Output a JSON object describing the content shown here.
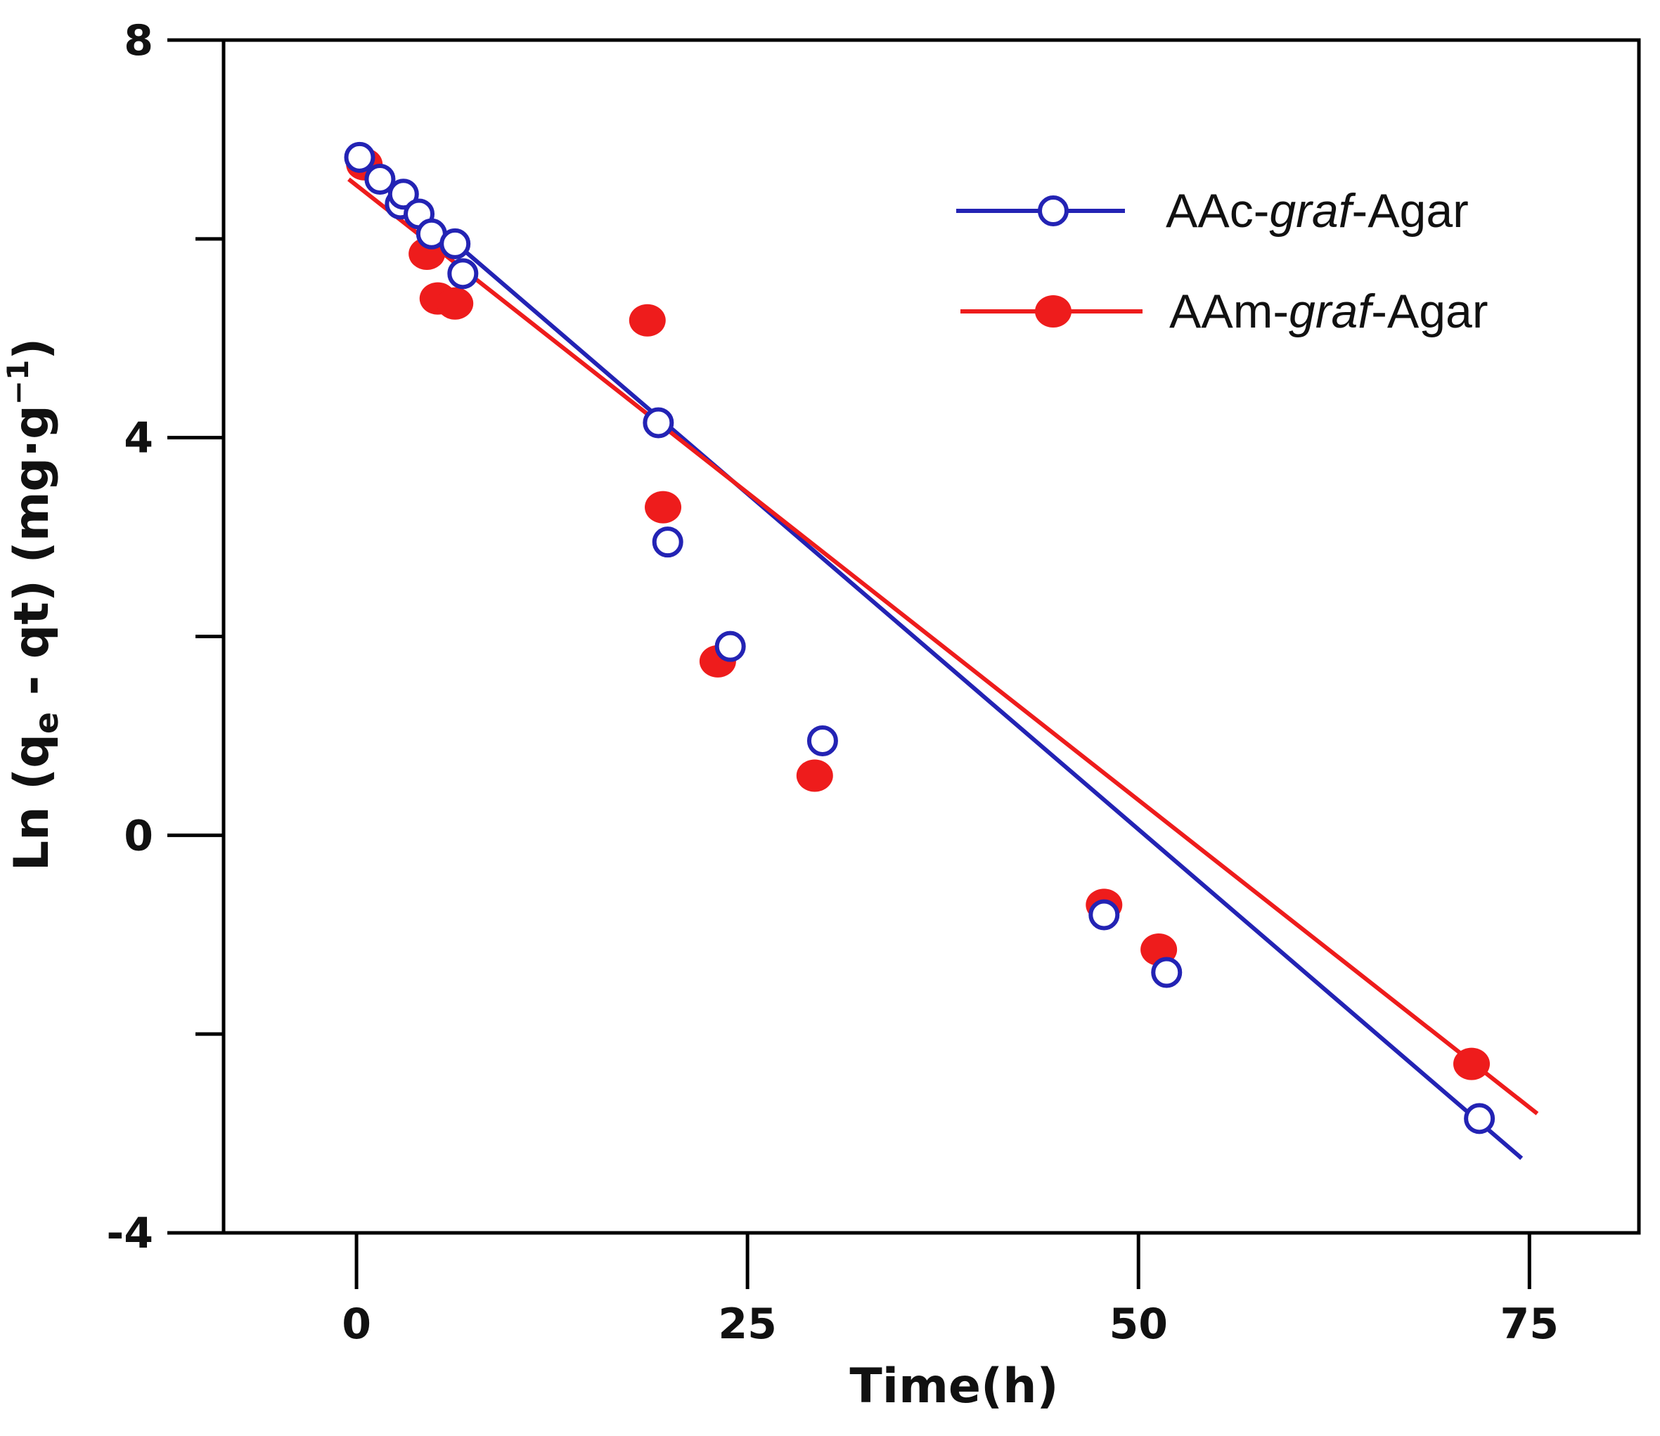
{
  "chart_data": {
    "type": "scatter",
    "xlabel": "Time(h)",
    "ylabel_parts": {
      "prefix": "Ln (q",
      "sub_e": "e",
      "middle": " - qt) (mg·g",
      "sup": "−1",
      "suffix": ")"
    },
    "xlim": [
      -8.5,
      82
    ],
    "ylim": [
      -4,
      8
    ],
    "x_ticks": [
      0,
      25,
      50,
      75
    ],
    "x_tick_labels": [
      "0",
      "25",
      "50",
      "75"
    ],
    "y_ticks": [
      -4,
      0,
      4,
      8
    ],
    "y_tick_labels": [
      "-4",
      "0",
      "4",
      "8"
    ],
    "y_minor_ticks": [
      -2,
      2,
      6
    ],
    "series": [
      {
        "name": "AAc-graf-Agar",
        "label_parts": [
          "AAc-",
          "graf",
          "-Agar"
        ],
        "marker": "open-circle",
        "color": "#2323b4",
        "points": [
          [
            0.2,
            6.82
          ],
          [
            1.5,
            6.6
          ],
          [
            2.8,
            6.35
          ],
          [
            3.0,
            6.45
          ],
          [
            4.0,
            6.25
          ],
          [
            4.8,
            6.05
          ],
          [
            6.3,
            5.95
          ],
          [
            6.8,
            5.65
          ],
          [
            19.3,
            4.15
          ],
          [
            19.9,
            2.95
          ],
          [
            23.9,
            1.9
          ],
          [
            29.8,
            0.95
          ],
          [
            47.8,
            -0.8
          ],
          [
            51.8,
            -1.38
          ],
          [
            71.8,
            -2.85
          ]
        ],
        "fit": [
          [
            -0.5,
            6.88
          ],
          [
            74.5,
            -3.25
          ]
        ]
      },
      {
        "name": "AAm-graf-Agar",
        "label_parts": [
          "AAm-",
          "graf",
          "-Agar"
        ],
        "marker": "filled-circle",
        "color": "#ee1c1c",
        "points": [
          [
            0.5,
            6.75
          ],
          [
            4.5,
            5.85
          ],
          [
            5.2,
            5.4
          ],
          [
            6.3,
            5.35
          ],
          [
            18.6,
            5.18
          ],
          [
            19.6,
            3.3
          ],
          [
            23.1,
            1.75
          ],
          [
            29.3,
            0.6
          ],
          [
            47.8,
            -0.7
          ],
          [
            51.3,
            -1.15
          ],
          [
            71.3,
            -2.3
          ]
        ],
        "fit": [
          [
            -0.5,
            6.6
          ],
          [
            75.5,
            -2.8
          ]
        ]
      }
    ],
    "legend_position": "top-right",
    "grid": false
  }
}
